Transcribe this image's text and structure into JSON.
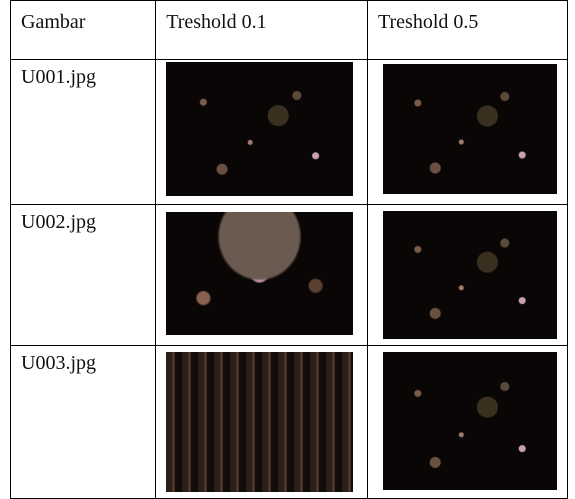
{
  "table": {
    "header": [
      "Gambar",
      "Treshold 0.1",
      "Treshold 0.5"
    ],
    "rows": [
      [
        "U001.jpg"
      ],
      [
        "U002.jpg"
      ],
      [
        "U003.jpg"
      ]
    ]
  }
}
